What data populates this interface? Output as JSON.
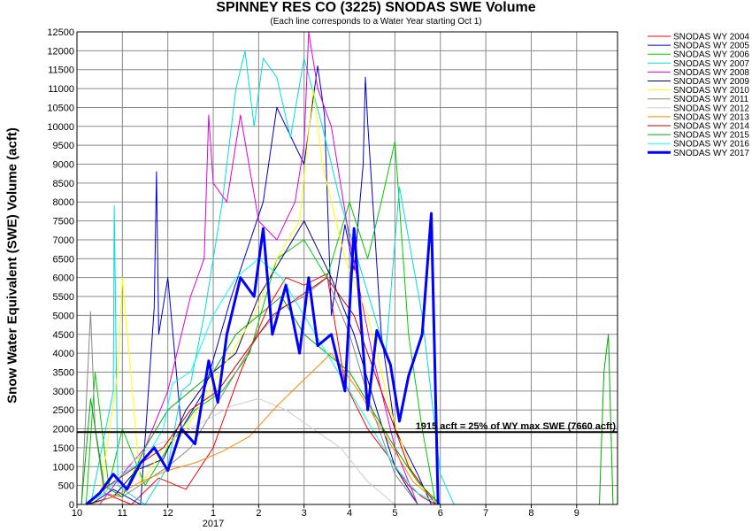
{
  "chart_data": {
    "type": "line",
    "title": "SPINNEY RES CO (3225) SNODAS SWE Volume",
    "subtitle": "(Each line corresponds to a Water Year starting Oct 1)",
    "ylabel": "Snow Water Equivalent (SWE) Volume (acft)",
    "xlabel": "",
    "ylim": [
      0,
      12500
    ],
    "y_ticks": [
      0,
      500,
      1000,
      1500,
      2000,
      2500,
      3000,
      3500,
      4000,
      4500,
      5000,
      5500,
      6000,
      6500,
      7000,
      7500,
      8000,
      8500,
      9000,
      9500,
      10000,
      10500,
      11000,
      11500,
      12000,
      12500
    ],
    "x_ticks": [
      {
        "label": "10",
        "month": 0
      },
      {
        "label": "11",
        "month": 1
      },
      {
        "label": "12",
        "month": 2
      },
      {
        "label": "1",
        "month": 3
      },
      {
        "label": "2",
        "month": 4
      },
      {
        "label": "3",
        "month": 5
      },
      {
        "label": "4",
        "month": 6
      },
      {
        "label": "5",
        "month": 7
      },
      {
        "label": "6",
        "month": 8
      },
      {
        "label": "7",
        "month": 9
      },
      {
        "label": "8",
        "month": 10
      },
      {
        "label": "9",
        "month": 11
      }
    ],
    "xlim": [
      0,
      11.9
    ],
    "x_sublabel": "2017",
    "grid": true,
    "legend_position": "right",
    "reference_line": {
      "value": 1915,
      "label": "1915 acft = 25% of WY max SWE (7660 acft)"
    },
    "series": [
      {
        "name": "SNODAS WY 2004",
        "color": "#ff0000",
        "width": 1,
        "x": [
          0.2,
          0.6,
          1.2,
          1.8,
          2.4,
          3.0,
          3.6,
          4.2,
          4.6,
          5.0,
          5.5,
          5.9,
          6.4,
          6.9,
          7.3,
          7.6,
          7.9
        ],
        "y": [
          0,
          300,
          0,
          700,
          400,
          1500,
          3500,
          5200,
          6000,
          5800,
          6100,
          3200,
          2000,
          1200,
          500,
          200,
          0
        ]
      },
      {
        "name": "SNODAS WY 2005",
        "color": "#0000cc",
        "width": 1,
        "x": [
          0.3,
          0.8,
          1.4,
          1.7,
          1.75,
          1.8,
          2.0,
          2.3,
          2.8,
          3.4,
          4.1,
          4.4,
          5.0,
          5.3,
          5.45,
          5.6,
          5.9,
          6.1,
          6.3,
          6.35,
          6.4,
          6.7,
          7.0,
          7.5,
          7.8
        ],
        "y": [
          0,
          400,
          0,
          5200,
          8800,
          4500,
          6000,
          2000,
          3000,
          5500,
          8000,
          10500,
          9000,
          11600,
          10300,
          5000,
          7400,
          6200,
          9000,
          11300,
          10100,
          4500,
          2000,
          800,
          0
        ]
      },
      {
        "name": "SNODAS WY 2006",
        "color": "#00cc00",
        "width": 1,
        "x": [
          0.2,
          0.4,
          0.7,
          1.0,
          1.5,
          2.0,
          2.6,
          3.2,
          3.8,
          4.4,
          5.0,
          5.5,
          6.0,
          6.4,
          6.7,
          7.0,
          7.3,
          7.6,
          7.9
        ],
        "y": [
          0,
          3500,
          500,
          2000,
          500,
          1500,
          2500,
          3000,
          4000,
          6500,
          7000,
          6000,
          8000,
          6500,
          8000,
          9600,
          4500,
          2000,
          0
        ]
      },
      {
        "name": "SNODAS WY 2007",
        "color": "#00dddd",
        "width": 1,
        "x": [
          0.3,
          0.8,
          0.82,
          0.9,
          1.5,
          2.0,
          2.3,
          2.5,
          2.8,
          3.2,
          3.5,
          3.7,
          3.9,
          4.1,
          4.4,
          4.7,
          5.0,
          5.4,
          5.8,
          6.3,
          6.8,
          7.1,
          7.6,
          8.0,
          8.3
        ],
        "y": [
          0,
          3000,
          7900,
          500,
          0,
          1000,
          3000,
          3200,
          5000,
          8000,
          11000,
          12000,
          10000,
          11800,
          11300,
          9700,
          11800,
          10000,
          8000,
          6000,
          4000,
          8400,
          5000,
          800,
          0
        ]
      },
      {
        "name": "SNODAS WY 2008",
        "color": "#dd00dd",
        "width": 1,
        "x": [
          0.5,
          1.0,
          1.5,
          2.0,
          2.5,
          2.8,
          2.9,
          3.0,
          3.3,
          3.6,
          4.0,
          4.4,
          4.8,
          5.0,
          5.1,
          5.3,
          5.6,
          6.0,
          6.5,
          7.0,
          7.5
        ],
        "y": [
          0,
          800,
          1500,
          3000,
          5500,
          6500,
          10300,
          8500,
          8000,
          10300,
          7500,
          7000,
          8000,
          9500,
          12500,
          11000,
          10000,
          7000,
          4000,
          1500,
          0
        ]
      },
      {
        "name": "SNODAS WY 2009",
        "color": "#000080",
        "width": 1,
        "x": [
          0.2,
          0.8,
          1.3,
          1.9,
          2.4,
          3.0,
          3.5,
          4.0,
          4.5,
          5.0,
          5.6,
          6.1,
          6.6,
          7.0,
          7.5
        ],
        "y": [
          0,
          200,
          900,
          1200,
          2500,
          3500,
          4000,
          5500,
          6500,
          7500,
          6000,
          4500,
          2500,
          1000,
          0
        ]
      },
      {
        "name": "SNODAS WY 2010",
        "color": "#ffff00",
        "width": 1,
        "x": [
          0.2,
          0.5,
          0.9,
          1.0,
          1.4,
          1.9,
          2.4,
          2.9,
          3.4,
          3.9,
          4.4,
          4.9,
          5.2,
          5.4,
          5.9,
          6.4,
          6.9,
          7.4,
          7.9
        ],
        "y": [
          0,
          200,
          3500,
          6000,
          500,
          1500,
          2000,
          3000,
          4000,
          5000,
          6500,
          7500,
          11000,
          9000,
          6500,
          5000,
          2500,
          800,
          0
        ]
      },
      {
        "name": "SNODAS WY 2011",
        "color": "#888888",
        "width": 1,
        "x": [
          0.1,
          0.3,
          0.4,
          0.6,
          1.0,
          1.5,
          2.0,
          2.5,
          3.0,
          3.5,
          4.0,
          4.5,
          5.0,
          5.5,
          6.0,
          6.5,
          7.0,
          7.5
        ],
        "y": [
          0,
          5100,
          2000,
          300,
          200,
          600,
          1000,
          1500,
          2500,
          3500,
          4500,
          5200,
          5500,
          6000,
          4500,
          2500,
          800,
          0
        ]
      },
      {
        "name": "SNODAS WY 2012",
        "color": "#cccccc",
        "width": 1,
        "x": [
          0.2,
          0.6,
          1.0,
          1.6,
          2.2,
          2.8,
          3.4,
          4.0,
          4.6,
          5.2,
          5.8,
          6.4,
          7.0
        ],
        "y": [
          0,
          300,
          900,
          1500,
          1800,
          2200,
          2600,
          2800,
          2500,
          2000,
          1500,
          600,
          0
        ]
      },
      {
        "name": "SNODAS WY 2013",
        "color": "#ff8800",
        "width": 1,
        "x": [
          0.3,
          0.8,
          1.4,
          2.0,
          2.6,
          3.2,
          3.8,
          4.4,
          5.0,
          5.6,
          6.2,
          6.8,
          7.4,
          8.0
        ],
        "y": [
          0,
          200,
          600,
          900,
          1100,
          1400,
          1800,
          2600,
          3300,
          4000,
          3000,
          1800,
          600,
          0
        ]
      },
      {
        "name": "SNODAS WY 2014",
        "color": "#cc0000",
        "width": 1,
        "x": [
          0.2,
          0.7,
          1.3,
          1.9,
          2.5,
          3.1,
          3.7,
          4.3,
          4.9,
          5.5,
          6.1,
          6.7,
          7.3,
          7.9
        ],
        "y": [
          0,
          500,
          1000,
          1500,
          2500,
          3000,
          4000,
          5000,
          5500,
          6000,
          5000,
          3000,
          1000,
          0
        ]
      },
      {
        "name": "SNODAS WY 2015",
        "color": "#00aa00",
        "width": 1,
        "x": [
          0.1,
          0.3,
          0.6,
          1.0,
          1.5,
          2.0,
          2.5,
          3.0,
          3.5,
          4.0,
          4.5,
          5.0,
          5.5,
          6.0,
          6.5,
          7.0,
          7.5,
          8.0,
          11.5,
          11.6,
          11.7,
          11.8
        ],
        "y": [
          0,
          2800,
          500,
          200,
          1500,
          2500,
          3000,
          3500,
          4500,
          5000,
          5500,
          4500,
          4000,
          3500,
          2500,
          1500,
          600,
          0,
          0,
          3500,
          4500,
          0
        ]
      },
      {
        "name": "SNODAS WY 2016",
        "color": "#00ffff",
        "width": 1,
        "x": [
          0.2,
          0.6,
          1.0,
          1.5,
          1.9,
          2.1,
          2.5,
          3.0,
          3.5,
          4.0,
          4.5,
          5.0,
          5.5,
          6.0,
          6.5,
          7.0,
          7.5,
          8.0
        ],
        "y": [
          0,
          300,
          800,
          1200,
          2000,
          3200,
          3500,
          5000,
          6000,
          6500,
          6000,
          5000,
          4000,
          3000,
          2000,
          1000,
          300,
          0
        ]
      },
      {
        "name": "SNODAS WY 2017",
        "color": "#0000ff",
        "width": 3,
        "x": [
          0.2,
          0.5,
          0.8,
          1.1,
          1.4,
          1.7,
          2.0,
          2.3,
          2.6,
          2.9,
          3.1,
          3.3,
          3.6,
          3.9,
          4.1,
          4.3,
          4.6,
          4.9,
          5.1,
          5.3,
          5.6,
          5.9,
          6.1,
          6.4,
          6.6,
          6.9,
          7.1,
          7.3,
          7.6,
          7.8,
          7.95
        ],
        "y": [
          0,
          300,
          800,
          400,
          1100,
          1500,
          900,
          2000,
          1600,
          3800,
          2700,
          4500,
          6000,
          5500,
          7300,
          4500,
          5800,
          4000,
          6000,
          4200,
          4500,
          3000,
          7300,
          2500,
          4600,
          3700,
          2200,
          3400,
          4500,
          7700,
          0
        ]
      }
    ]
  }
}
